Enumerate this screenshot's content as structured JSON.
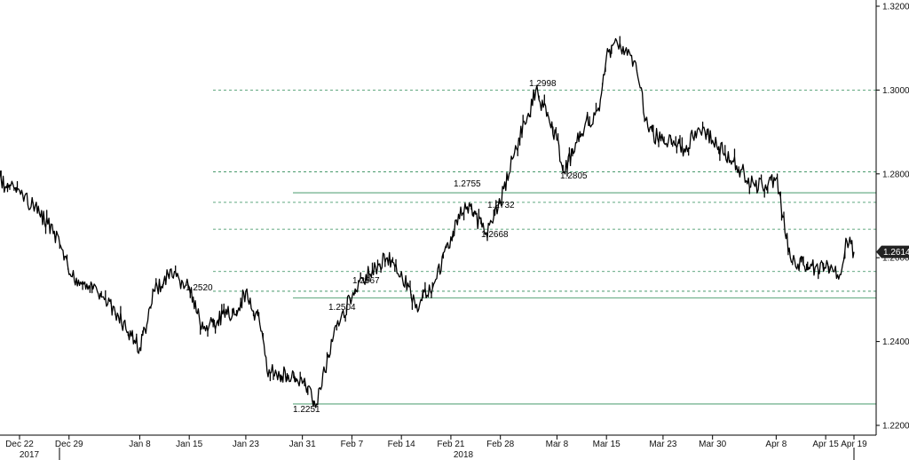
{
  "chart_data": {
    "type": "line",
    "ylim": [
      1.22,
      1.32
    ],
    "y_ticks": [
      "1.2200",
      "1.2400",
      "1.2600",
      "1.2800",
      "1.3000",
      "1.3200"
    ],
    "x_ticks": [
      "Dec 22",
      "Dec 29",
      "Jan 8",
      "Jan 15",
      "Jan 23",
      "Jan 31",
      "Feb 7",
      "Feb 14",
      "Feb 21",
      "Feb 28",
      "Mar 8",
      "Mar 15",
      "Mar 23",
      "Mar 30",
      "Apr 8",
      "Apr 15",
      "Apr 19"
    ],
    "years": [
      "2017",
      "2018"
    ],
    "series": [
      {
        "x": [
          "Dec 18",
          "Dec 20",
          "Dec 22",
          "Dec 26",
          "Dec 28",
          "Dec 29",
          "Jan 2",
          "Jan 3",
          "Jan 5",
          "Jan 8",
          "Jan 9",
          "Jan 10",
          "Jan 12",
          "Jan 15",
          "Jan 16",
          "Jan 17",
          "Jan 19",
          "Jan 22",
          "Jan 23",
          "Jan 25",
          "Jan 26",
          "Jan 29",
          "Jan 31",
          "Feb 2",
          "Feb 5",
          "Feb 7",
          "Feb 9",
          "Feb 12",
          "Feb 14",
          "Feb 16",
          "Feb 19",
          "Feb 21",
          "Feb 23",
          "Feb 26",
          "Feb 28",
          "Mar 2",
          "Mar 5",
          "Mar 7",
          "Mar 8",
          "Mar 9",
          "Mar 12",
          "Mar 14",
          "Mar 15",
          "Mar 16",
          "Mar 19",
          "Mar 21",
          "Mar 23",
          "Mar 26",
          "Mar 28",
          "Mar 30",
          "Apr 3",
          "Apr 5",
          "Apr 8",
          "Apr 10",
          "Apr 12",
          "Apr 15",
          "Apr 17",
          "Apr 18",
          "Apr 19"
        ],
        "values": [
          1.283,
          1.277,
          1.276,
          1.268,
          1.262,
          1.256,
          1.252,
          1.25,
          1.246,
          1.2385,
          1.244,
          1.252,
          1.256,
          1.253,
          1.247,
          1.243,
          1.245,
          1.248,
          1.252,
          1.244,
          1.233,
          1.232,
          1.23,
          1.2251,
          1.245,
          1.2504,
          1.256,
          1.26,
          1.2567,
          1.248,
          1.255,
          1.265,
          1.273,
          1.266,
          1.2732,
          1.285,
          1.2998,
          1.292,
          1.288,
          1.2805,
          1.292,
          1.295,
          1.308,
          1.311,
          1.307,
          1.29,
          1.288,
          1.286,
          1.291,
          1.288,
          1.281,
          1.277,
          1.279,
          1.26,
          1.258,
          1.2575,
          1.256,
          1.264,
          1.2614
        ]
      }
    ],
    "annotations": [
      "1.2998",
      "1.2755",
      "1.2732",
      "1.2805",
      "1.2668",
      "1.2520",
      "1.2567",
      "1.2504",
      "1.2251"
    ],
    "levels_dashed": [
      1.3,
      1.2805,
      1.2732,
      1.2668,
      1.2567,
      1.252
    ],
    "levels_solid": [
      1.2755,
      1.2504,
      1.2251
    ],
    "last_value": "1.2614",
    "grid": false,
    "colors": {
      "line": "#000000",
      "level_line": "#2e8b57",
      "badge": "#222222"
    }
  }
}
